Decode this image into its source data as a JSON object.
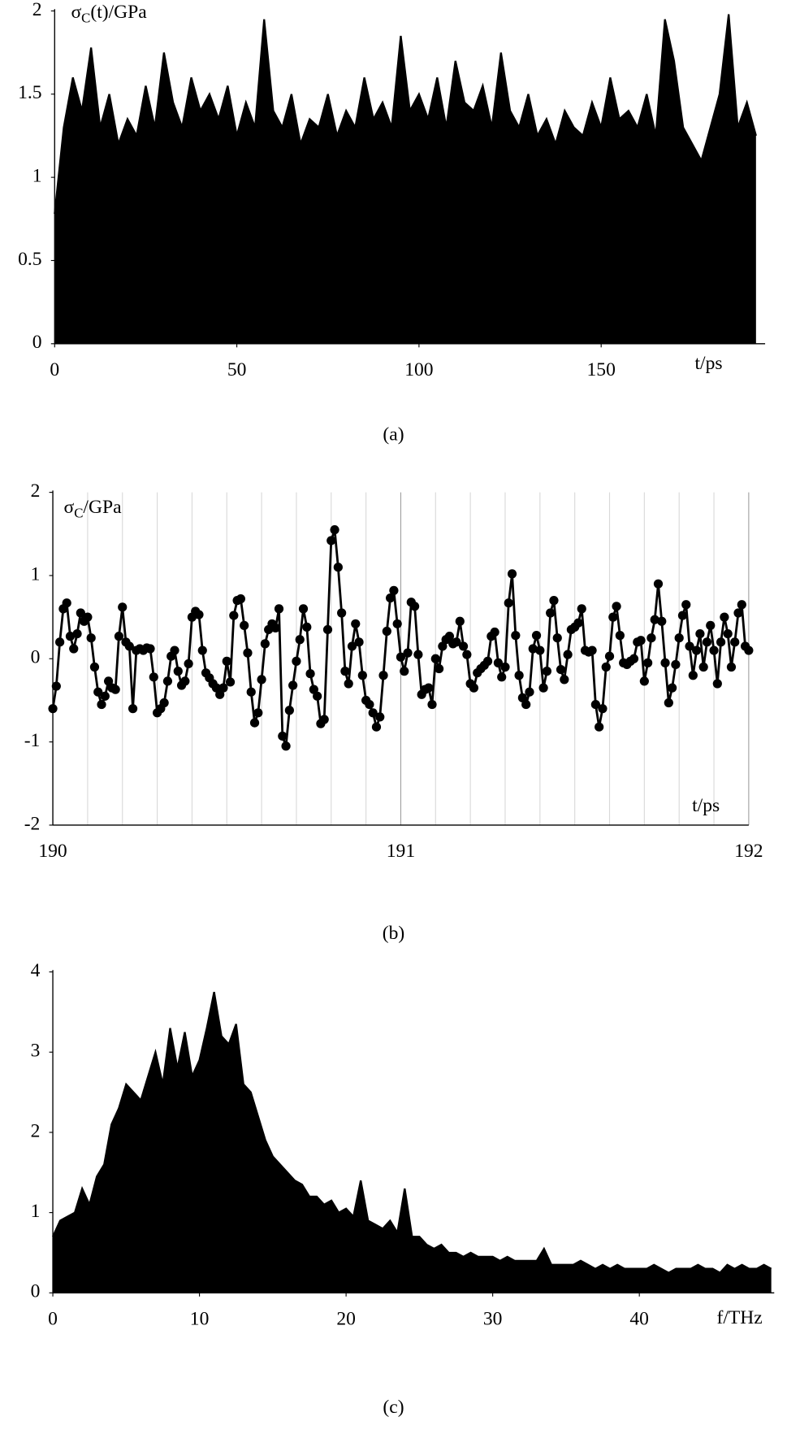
{
  "chart_data": [
    {
      "type": "area",
      "caption": "(a)",
      "ylabel": [
        "σ",
        "C",
        "(t)/GPa"
      ],
      "xlabel": "t/ps",
      "color": "#000000",
      "xlim": [
        0,
        195
      ],
      "xticks": [
        0,
        50,
        100,
        150
      ],
      "ylim": [
        0,
        2
      ],
      "yticks": [
        0,
        0.5,
        1,
        1.5,
        2
      ],
      "x": [
        0,
        2.5,
        5,
        7.5,
        10,
        12.5,
        15,
        17.5,
        20,
        22.5,
        25,
        27.5,
        30,
        32.5,
        35,
        37.5,
        40,
        42.5,
        45,
        47.5,
        50,
        52.5,
        55,
        57.5,
        60,
        62.5,
        65,
        67.5,
        70,
        72.5,
        75,
        77.5,
        80,
        82.5,
        85,
        87.5,
        90,
        92.5,
        95,
        97.5,
        100,
        102.5,
        105,
        107.5,
        110,
        112.5,
        115,
        117.5,
        120,
        122.5,
        125,
        127.5,
        130,
        132.5,
        135,
        137.5,
        140,
        142.5,
        145,
        147.5,
        150,
        152.5,
        155,
        157.5,
        160,
        162.5,
        165,
        167.5,
        170,
        172.5,
        175,
        177.5,
        180,
        182.5,
        185,
        187.5,
        190,
        192.5
      ],
      "values": [
        0.78,
        1.3,
        1.6,
        1.4,
        1.78,
        1.3,
        1.5,
        1.2,
        1.35,
        1.25,
        1.55,
        1.3,
        1.75,
        1.45,
        1.3,
        1.6,
        1.4,
        1.5,
        1.35,
        1.55,
        1.25,
        1.45,
        1.3,
        1.95,
        1.4,
        1.3,
        1.5,
        1.2,
        1.35,
        1.3,
        1.5,
        1.25,
        1.4,
        1.3,
        1.6,
        1.35,
        1.45,
        1.3,
        1.85,
        1.4,
        1.5,
        1.35,
        1.6,
        1.3,
        1.7,
        1.45,
        1.4,
        1.55,
        1.3,
        1.75,
        1.4,
        1.3,
        1.5,
        1.25,
        1.35,
        1.2,
        1.4,
        1.3,
        1.25,
        1.45,
        1.3,
        1.6,
        1.35,
        1.4,
        1.3,
        1.5,
        1.25,
        1.95,
        1.7,
        1.3,
        1.2,
        1.1,
        1.3,
        1.5,
        1.98,
        1.3,
        1.45,
        1.25
      ]
    },
    {
      "type": "line",
      "caption": "(b)",
      "ylabel": [
        "σ",
        "C",
        "/GPa"
      ],
      "xlabel": "t/ps",
      "color": "#000000",
      "xlim": [
        190,
        192
      ],
      "xticks": [
        190,
        191,
        192
      ],
      "xminor": [
        190.1,
        190.2,
        190.3,
        190.4,
        190.5,
        190.6,
        190.7,
        190.8,
        190.9,
        191.1,
        191.2,
        191.3,
        191.4,
        191.5,
        191.6,
        191.7,
        191.8,
        191.9
      ],
      "ylim": [
        -2,
        2
      ],
      "yticks": [
        -2,
        -1,
        0,
        1,
        2
      ],
      "x": [
        190,
        190.01,
        190.02,
        190.03,
        190.04,
        190.05,
        190.06,
        190.07,
        190.08,
        190.09,
        190.1,
        190.11,
        190.12,
        190.13,
        190.14,
        190.15,
        190.16,
        190.17,
        190.18,
        190.19,
        190.2,
        190.21,
        190.22,
        190.23,
        190.24,
        190.25,
        190.26,
        190.27,
        190.28,
        190.29,
        190.3,
        190.31,
        190.32,
        190.33,
        190.34,
        190.35,
        190.36,
        190.37,
        190.38,
        190.39,
        190.4,
        190.41,
        190.42,
        190.43,
        190.44,
        190.45,
        190.46,
        190.47,
        190.48,
        190.49,
        190.5,
        190.51,
        190.52,
        190.53,
        190.54,
        190.55,
        190.56,
        190.57,
        190.58,
        190.59,
        190.6,
        190.61,
        190.62,
        190.63,
        190.64,
        190.65,
        190.66,
        190.67,
        190.68,
        190.69,
        190.7,
        190.71,
        190.72,
        190.73,
        190.74,
        190.75,
        190.76,
        190.77,
        190.78,
        190.79,
        190.8,
        190.81,
        190.82,
        190.83,
        190.84,
        190.85,
        190.86,
        190.87,
        190.88,
        190.89,
        190.9,
        190.91,
        190.92,
        190.93,
        190.94,
        190.95,
        190.96,
        190.97,
        190.98,
        190.99,
        191,
        191.01,
        191.02,
        191.03,
        191.04,
        191.05,
        191.06,
        191.07,
        191.08,
        191.09,
        191.1,
        191.11,
        191.12,
        191.13,
        191.14,
        191.15,
        191.16,
        191.17,
        191.18,
        191.19,
        191.2,
        191.21,
        191.22,
        191.23,
        191.24,
        191.25,
        191.26,
        191.27,
        191.28,
        191.29,
        191.3,
        191.31,
        191.32,
        191.33,
        191.34,
        191.35,
        191.36,
        191.37,
        191.38,
        191.39,
        191.4,
        191.41,
        191.42,
        191.43,
        191.44,
        191.45,
        191.46,
        191.47,
        191.48,
        191.49,
        191.5,
        191.51,
        191.52,
        191.53,
        191.54,
        191.55,
        191.56,
        191.57,
        191.58,
        191.59,
        191.6,
        191.61,
        191.62,
        191.63,
        191.64,
        191.65,
        191.66,
        191.67,
        191.68,
        191.69,
        191.7,
        191.71,
        191.72,
        191.73,
        191.74,
        191.75,
        191.76,
        191.77,
        191.78,
        191.79,
        191.8,
        191.81,
        191.82,
        191.83,
        191.84,
        191.85,
        191.86,
        191.87,
        191.88,
        191.89,
        191.9,
        191.91,
        191.92,
        191.93,
        191.94,
        191.95,
        191.96,
        191.97,
        191.98,
        191.99,
        192
      ],
      "values": [
        -0.6,
        -0.33,
        0.2,
        0.6,
        0.67,
        0.27,
        0.12,
        0.3,
        0.55,
        0.45,
        0.5,
        0.25,
        -0.1,
        -0.4,
        -0.55,
        -0.45,
        -0.27,
        -0.35,
        -0.37,
        0.27,
        0.62,
        0.2,
        0.15,
        -0.6,
        0.1,
        0.12,
        0.1,
        0.13,
        0.12,
        -0.22,
        -0.65,
        -0.6,
        -0.53,
        -0.27,
        0.03,
        0.1,
        -0.15,
        -0.32,
        -0.27,
        -0.06,
        0.5,
        0.57,
        0.53,
        0.1,
        -0.17,
        -0.23,
        -0.3,
        -0.35,
        -0.43,
        -0.35,
        -0.03,
        -0.28,
        0.52,
        0.7,
        0.72,
        0.4,
        0.07,
        -0.4,
        -0.77,
        -0.65,
        -0.25,
        0.18,
        0.35,
        0.42,
        0.37,
        0.6,
        -0.93,
        -1.05,
        -0.62,
        -0.32,
        -0.03,
        0.23,
        0.6,
        0.38,
        -0.18,
        -0.37,
        -0.45,
        -0.78,
        -0.73,
        0.35,
        1.42,
        1.55,
        1.1,
        0.55,
        -0.15,
        -0.3,
        0.15,
        0.42,
        0.2,
        -0.2,
        -0.5,
        -0.55,
        -0.65,
        -0.82,
        -0.7,
        -0.2,
        0.33,
        0.73,
        0.82,
        0.42,
        0.02,
        -0.15,
        0.07,
        0.68,
        0.63,
        0.05,
        -0.43,
        -0.37,
        -0.35,
        -0.55,
        0,
        -0.12,
        0.15,
        0.23,
        0.27,
        0.18,
        0.2,
        0.45,
        0.15,
        0.05,
        -0.3,
        -0.35,
        -0.17,
        -0.12,
        -0.08,
        -0.03,
        0.27,
        0.32,
        -0.05,
        -0.22,
        -0.1,
        0.67,
        1.02,
        0.28,
        -0.2,
        -0.47,
        -0.55,
        -0.4,
        0.12,
        0.28,
        0.1,
        -0.35,
        -0.15,
        0.55,
        0.7,
        0.25,
        -0.13,
        -0.25,
        0.05,
        0.35,
        0.38,
        0.43,
        0.6,
        0.1,
        0.08,
        0.1,
        -0.55,
        -0.82,
        -0.6,
        -0.1,
        0.03,
        0.5,
        0.63,
        0.28,
        -0.05,
        -0.07,
        -0.03,
        0,
        0.2,
        0.22,
        -0.27,
        -0.05,
        0.25,
        0.47,
        0.9,
        0.45,
        -0.05,
        -0.53,
        -0.35,
        -0.07,
        0.25,
        0.52,
        0.65,
        0.15,
        -0.2,
        0.1,
        0.3,
        -0.1,
        0.2,
        0.4,
        0.1,
        -0.3,
        0.2,
        0.5,
        0.3,
        -0.1,
        0.2,
        0.55,
        0.65,
        0.15,
        0.1
      ]
    },
    {
      "type": "area",
      "caption": "(c)",
      "xlabel": "f/THz",
      "color": "#000000",
      "xlim": [
        0,
        49.2
      ],
      "xticks": [
        0,
        10,
        20,
        30,
        40
      ],
      "ylim": [
        0,
        4
      ],
      "yticks": [
        0,
        1,
        2,
        3,
        4
      ],
      "x": [
        0,
        0.5,
        1,
        1.5,
        2,
        2.5,
        3,
        3.5,
        4,
        4.5,
        5,
        5.5,
        6,
        6.5,
        7,
        7.5,
        8,
        8.5,
        9,
        9.5,
        10,
        10.5,
        11,
        11.5,
        12,
        12.5,
        13,
        13.5,
        14,
        14.5,
        15,
        15.5,
        16,
        16.5,
        17,
        17.5,
        18,
        18.5,
        19,
        19.5,
        20,
        20.5,
        21,
        21.5,
        22,
        22.5,
        23,
        23.5,
        24,
        24.5,
        25,
        25.5,
        26,
        26.5,
        27,
        27.5,
        28,
        28.5,
        29,
        29.5,
        30,
        30.5,
        31,
        31.5,
        32,
        32.5,
        33,
        33.5,
        34,
        34.5,
        35,
        35.5,
        36,
        36.5,
        37,
        37.5,
        38,
        38.5,
        39,
        39.5,
        40,
        40.5,
        41,
        41.5,
        42,
        42.5,
        43,
        43.5,
        44,
        44.5,
        45,
        45.5,
        46,
        46.5,
        47,
        47.5,
        48,
        48.5,
        49
      ],
      "values": [
        0.7,
        0.9,
        0.95,
        1.0,
        1.3,
        1.1,
        1.45,
        1.6,
        2.1,
        2.3,
        2.6,
        2.5,
        2.4,
        2.7,
        3.0,
        2.6,
        3.3,
        2.8,
        3.25,
        2.7,
        2.9,
        3.3,
        3.75,
        3.2,
        3.1,
        3.35,
        2.6,
        2.5,
        2.2,
        1.9,
        1.7,
        1.6,
        1.5,
        1.4,
        1.35,
        1.2,
        1.2,
        1.1,
        1.15,
        1.0,
        1.05,
        0.95,
        1.4,
        0.9,
        0.85,
        0.8,
        0.9,
        0.75,
        1.3,
        0.7,
        0.7,
        0.6,
        0.55,
        0.6,
        0.5,
        0.5,
        0.45,
        0.5,
        0.45,
        0.45,
        0.45,
        0.4,
        0.45,
        0.4,
        0.4,
        0.4,
        0.4,
        0.55,
        0.35,
        0.35,
        0.35,
        0.35,
        0.4,
        0.35,
        0.3,
        0.35,
        0.3,
        0.35,
        0.3,
        0.3,
        0.3,
        0.3,
        0.35,
        0.3,
        0.25,
        0.3,
        0.3,
        0.3,
        0.35,
        0.3,
        0.3,
        0.25,
        0.35,
        0.3,
        0.35,
        0.3,
        0.3,
        0.35,
        0.3
      ]
    }
  ]
}
